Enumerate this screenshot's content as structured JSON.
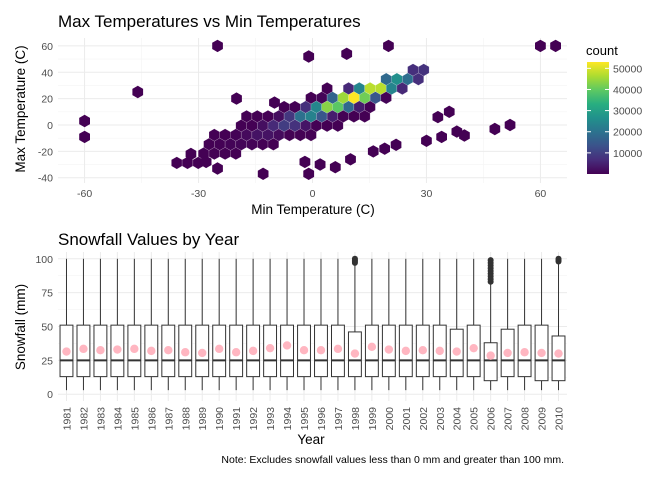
{
  "chart_data": [
    {
      "type": "heatmap",
      "subtype": "hexbin",
      "title": "Max Temperatures vs Min Temperatures",
      "xlabel": "Min Temperature (C)",
      "ylabel": "Max Temperature (C)",
      "xlim": [
        -67,
        67
      ],
      "ylim": [
        -44,
        66
      ],
      "xticks": [
        -60,
        -30,
        0,
        30,
        60
      ],
      "yticks": [
        -40,
        -20,
        0,
        20,
        40,
        60
      ],
      "grid": true,
      "colormap": "viridis",
      "legend": {
        "title": "count",
        "placement": "right",
        "ticks": [
          10000,
          20000,
          30000,
          40000,
          50000
        ],
        "range": [
          1,
          53000
        ]
      },
      "main_ridge": {
        "from": [
          -32,
          -28
        ],
        "to": [
          26,
          38
        ],
        "peak": [
          12,
          24
        ],
        "peak_count": 53000
      },
      "sparse_points": [
        [
          -60,
          3
        ],
        [
          -60,
          -9
        ],
        [
          -46,
          25
        ],
        [
          -32,
          -22
        ],
        [
          -25,
          60
        ],
        [
          -28,
          -28
        ],
        [
          -25,
          -33
        ],
        [
          -13,
          -37
        ],
        [
          -20,
          20
        ],
        [
          -10,
          17
        ],
        [
          -1,
          -37
        ],
        [
          -2,
          -28
        ],
        [
          2,
          -30
        ],
        [
          6,
          -32
        ],
        [
          9,
          54
        ],
        [
          -1,
          52
        ],
        [
          10,
          -26
        ],
        [
          16,
          -20
        ],
        [
          19,
          -18
        ],
        [
          22,
          -15
        ],
        [
          20,
          60
        ],
        [
          30,
          -12
        ],
        [
          34,
          -9
        ],
        [
          36,
          10
        ],
        [
          33,
          6
        ],
        [
          38,
          -5
        ],
        [
          40,
          -8
        ],
        [
          48,
          -3
        ],
        [
          52,
          0
        ],
        [
          60,
          60
        ],
        [
          64,
          60
        ]
      ]
    },
    {
      "type": "box",
      "title": "Snowfall Values by Year",
      "xlabel": "Year",
      "ylabel": "Snowfall (mm)",
      "ylim": [
        0,
        100
      ],
      "yticks": [
        0,
        25,
        50,
        75,
        100
      ],
      "grid": true,
      "categories": [
        "1981",
        "1982",
        "1983",
        "1984",
        "1985",
        "1986",
        "1987",
        "1988",
        "1989",
        "1990",
        "1991",
        "1992",
        "1993",
        "1994",
        "1995",
        "1996",
        "1997",
        "1998",
        "1999",
        "2000",
        "2001",
        "2002",
        "2003",
        "2004",
        "2005",
        "2006",
        "2007",
        "2008",
        "2009",
        "2010"
      ],
      "series": [
        {
          "q1": [
            13,
            13,
            13,
            13,
            13,
            13,
            13,
            13,
            13,
            13,
            13,
            13,
            13,
            13,
            13,
            13,
            13,
            13,
            13,
            13,
            13,
            13,
            13,
            13,
            13,
            10,
            13,
            13,
            10,
            10
          ],
          "median": [
            25,
            25,
            25,
            25,
            25,
            25,
            25,
            25,
            25,
            25,
            25,
            25,
            25,
            25,
            25,
            25,
            25,
            25,
            25,
            25,
            25,
            25,
            25,
            25,
            25,
            25,
            25,
            25,
            25,
            25
          ],
          "q3": [
            51,
            51,
            51,
            51,
            51,
            51,
            51,
            51,
            51,
            51,
            51,
            51,
            51,
            51,
            51,
            51,
            51,
            46,
            51,
            51,
            51,
            51,
            51,
            48,
            51,
            38,
            48,
            51,
            51,
            43
          ],
          "whisker_low": [
            3,
            3,
            3,
            3,
            3,
            3,
            3,
            3,
            3,
            3,
            3,
            3,
            3,
            3,
            3,
            3,
            3,
            3,
            3,
            3,
            3,
            3,
            3,
            3,
            3,
            3,
            3,
            3,
            3,
            3
          ],
          "whisker_high": [
            100,
            100,
            100,
            100,
            100,
            100,
            100,
            100,
            100,
            100,
            100,
            100,
            100,
            100,
            100,
            100,
            100,
            96,
            100,
            100,
            100,
            100,
            100,
            100,
            100,
            81,
            100,
            100,
            100,
            97
          ],
          "mean": [
            31.5,
            33.5,
            32.5,
            33,
            33.5,
            32,
            32.5,
            31,
            30.5,
            33.5,
            31,
            32,
            34,
            36,
            32.5,
            32.5,
            33.5,
            30,
            35,
            33,
            32,
            32.5,
            32,
            31.5,
            34,
            28.5,
            30.5,
            31,
            30.5,
            30
          ],
          "outliers": [
            [],
            [],
            [],
            [],
            [],
            [],
            [],
            [],
            [],
            [],
            [],
            [],
            [],
            [],
            [],
            [],
            [],
            [
              97,
              98,
              99,
              100
            ],
            [],
            [],
            [],
            [],
            [],
            [],
            [],
            [
              83,
              85,
              87,
              89,
              91,
              93,
              95,
              97,
              99
            ],
            [],
            [],
            [],
            [
              98,
              99,
              100
            ]
          ]
        }
      ],
      "colors": {
        "mean_point": "#ffb6c1",
        "box": "#333333",
        "outlier": "#333333"
      }
    }
  ],
  "legend_labels": [
    "10000",
    "20000",
    "30000",
    "40000",
    "50000"
  ],
  "caption": "Note: Excludes snowfall values less than 0 mm and greater than 100 mm."
}
